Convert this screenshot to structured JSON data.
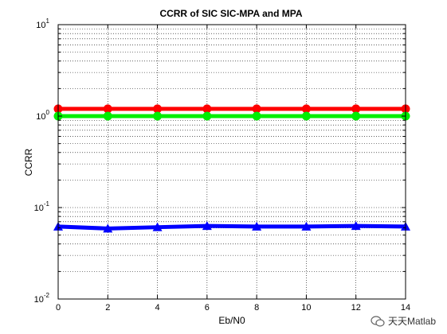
{
  "chart_data": {
    "type": "line",
    "title": "CCRR of SIC SIC-MPA and MPA",
    "xlabel": "Eb/N0",
    "ylabel": "CCRR",
    "x": [
      0,
      2,
      4,
      6,
      8,
      10,
      12,
      14
    ],
    "xlim": [
      0,
      14
    ],
    "ylim": [
      0.01,
      10
    ],
    "yscale": "log",
    "xticks": [
      "0",
      "2",
      "4",
      "6",
      "8",
      "10",
      "12",
      "14"
    ],
    "yticks": [
      {
        "value": 10,
        "base": "10",
        "exp": "1"
      },
      {
        "value": 1,
        "base": "10",
        "exp": "0"
      },
      {
        "value": 0.1,
        "base": "10",
        "exp": "-1"
      },
      {
        "value": 0.01,
        "base": "10",
        "exp": "-2"
      }
    ],
    "grid": true,
    "series": [
      {
        "values": [
          1.2,
          1.2,
          1.2,
          1.2,
          1.2,
          1.2,
          1.2,
          1.2
        ],
        "color": "#ff0000",
        "marker": "circle"
      },
      {
        "values": [
          1.0,
          1.0,
          1.0,
          1.0,
          1.0,
          1.0,
          1.0,
          1.0
        ],
        "color": "#00ee00",
        "marker": "circle"
      },
      {
        "values": [
          0.062,
          0.059,
          0.061,
          0.063,
          0.062,
          0.062,
          0.063,
          0.062
        ],
        "color": "#0000ff",
        "marker": "triangle"
      }
    ]
  },
  "watermark": {
    "text": "天天Matlab",
    "icon": "wechat-icon"
  }
}
